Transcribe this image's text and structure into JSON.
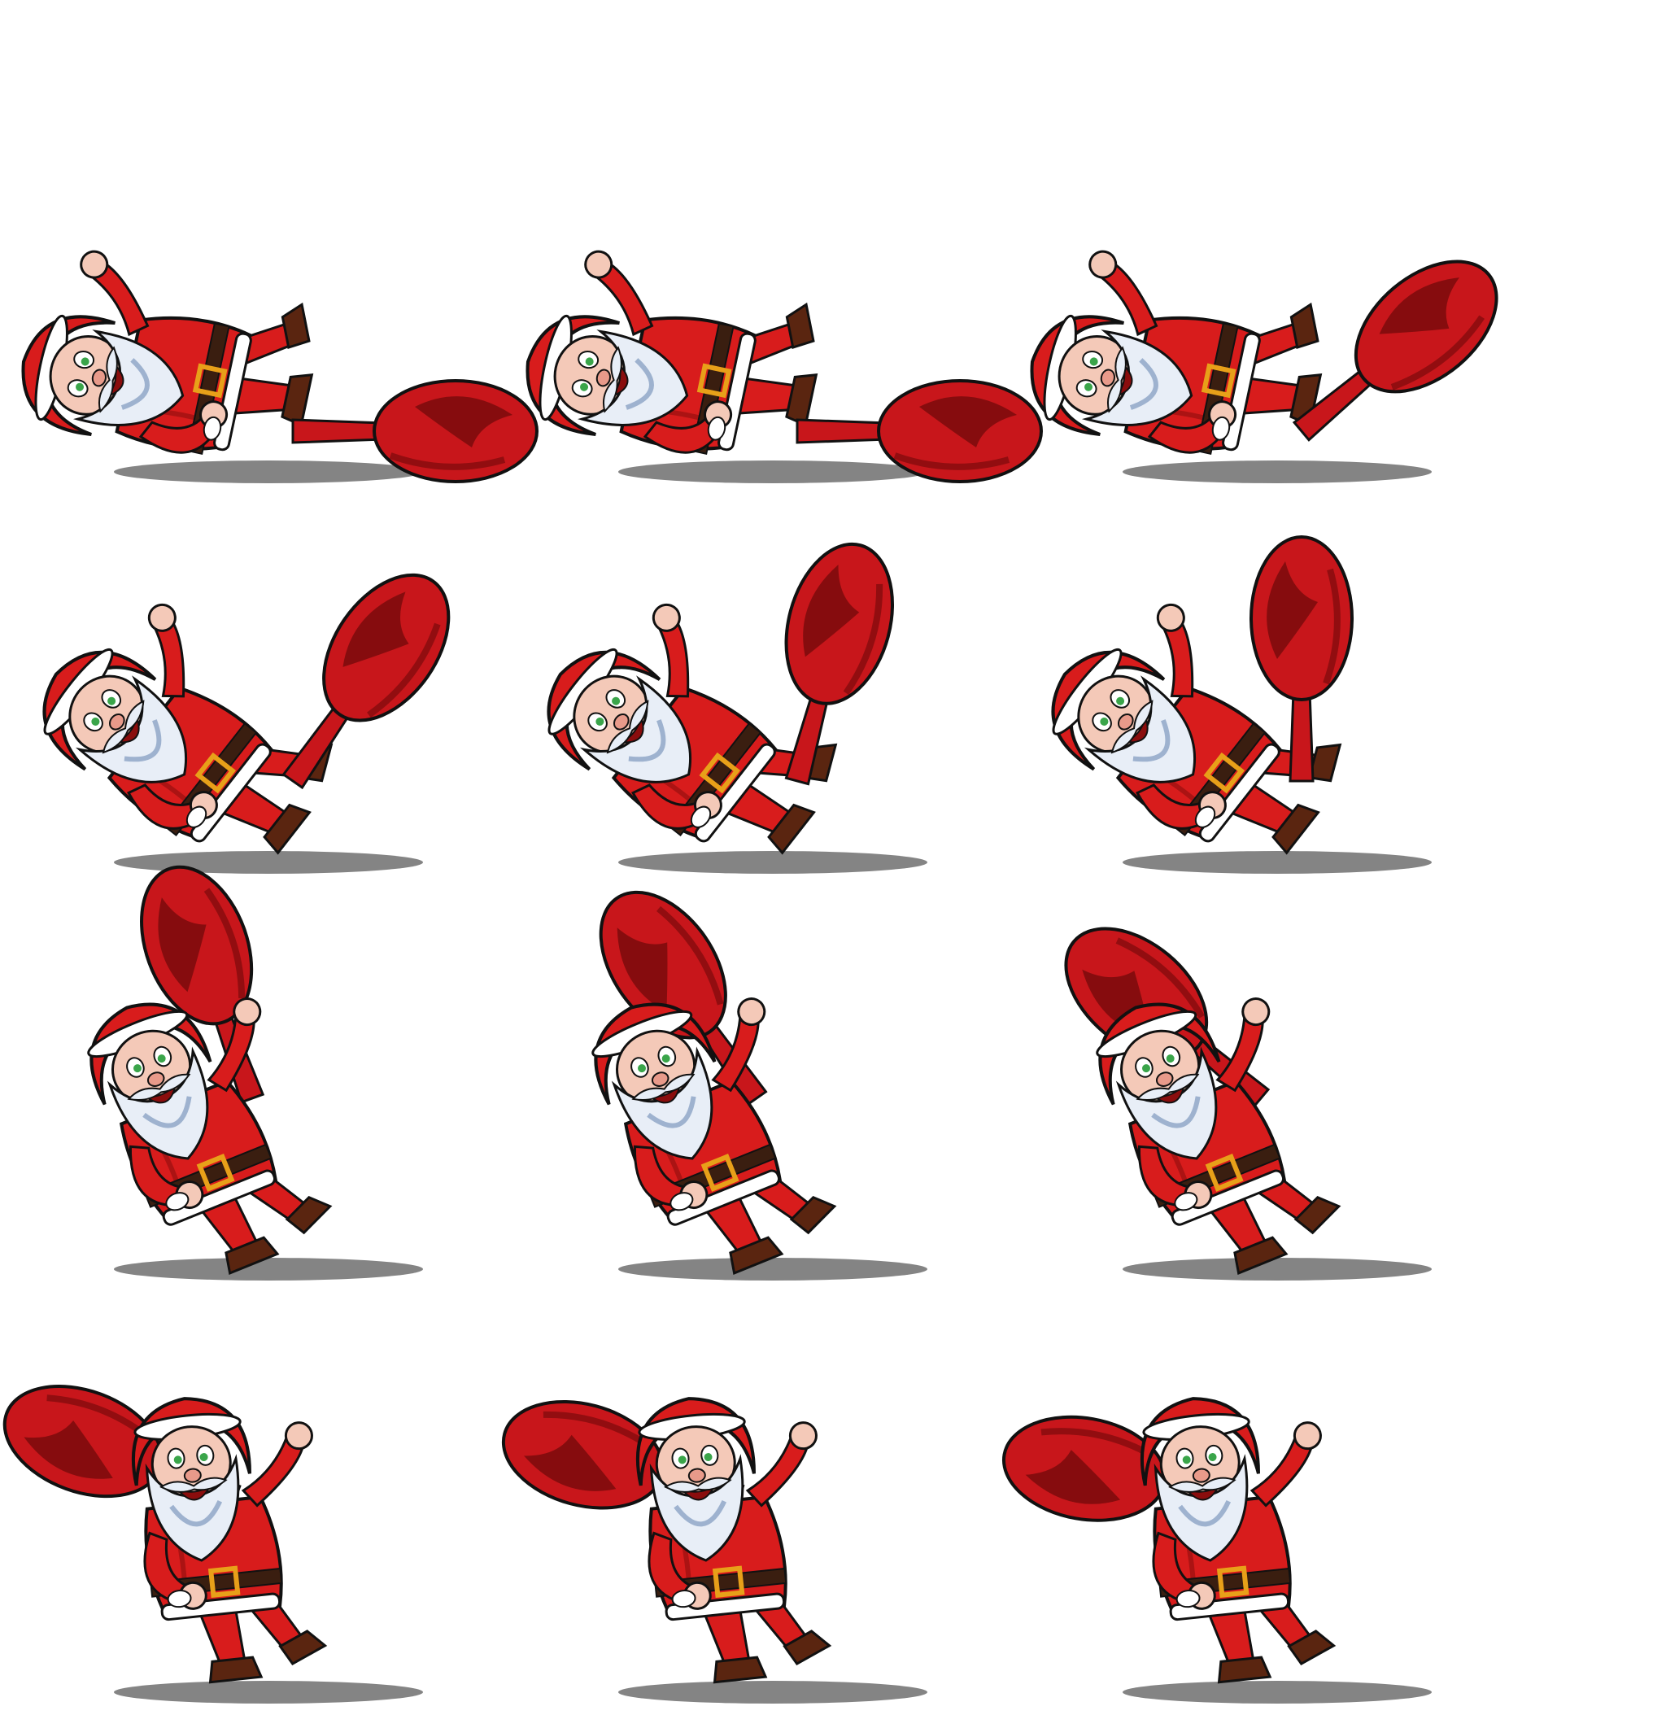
{
  "sheet": {
    "background": "#ffffff",
    "columns": 3,
    "rows": 4
  },
  "palette": {
    "suit": "#d81c1c",
    "suit_dark": "#8e0e0e",
    "sack": "#c8161b",
    "sack_dark": "#7a0a0c",
    "fur": "#ffffff",
    "beard": "#e8eef7",
    "beard_shade": "#9eb2cf",
    "skin": "#f4c9b8",
    "belt": "#3a1e10",
    "buckle": "#e8a019",
    "boot": "#5a2510",
    "eye": "#3aa54a",
    "outline": "#111111",
    "shadow": "#6e6e6e"
  },
  "frames": [
    {
      "name": "frame-01",
      "pose": "lying",
      "sack_angle": 0
    },
    {
      "name": "frame-02",
      "pose": "lying",
      "sack_angle": 0
    },
    {
      "name": "frame-03",
      "pose": "lying",
      "sack_angle": -40
    },
    {
      "name": "frame-04",
      "pose": "rising",
      "sack_angle": -55
    },
    {
      "name": "frame-05",
      "pose": "rising",
      "sack_angle": -75
    },
    {
      "name": "frame-06",
      "pose": "rising",
      "sack_angle": -90
    },
    {
      "name": "frame-07",
      "pose": "sitting",
      "sack_angle": -110
    },
    {
      "name": "frame-08",
      "pose": "sitting",
      "sack_angle": -125
    },
    {
      "name": "frame-09",
      "pose": "sitting",
      "sack_angle": -140
    },
    {
      "name": "frame-10",
      "pose": "standing",
      "sack_angle": -160
    },
    {
      "name": "frame-11",
      "pose": "standing",
      "sack_angle": -165
    },
    {
      "name": "frame-12",
      "pose": "standing",
      "sack_angle": -170
    }
  ]
}
